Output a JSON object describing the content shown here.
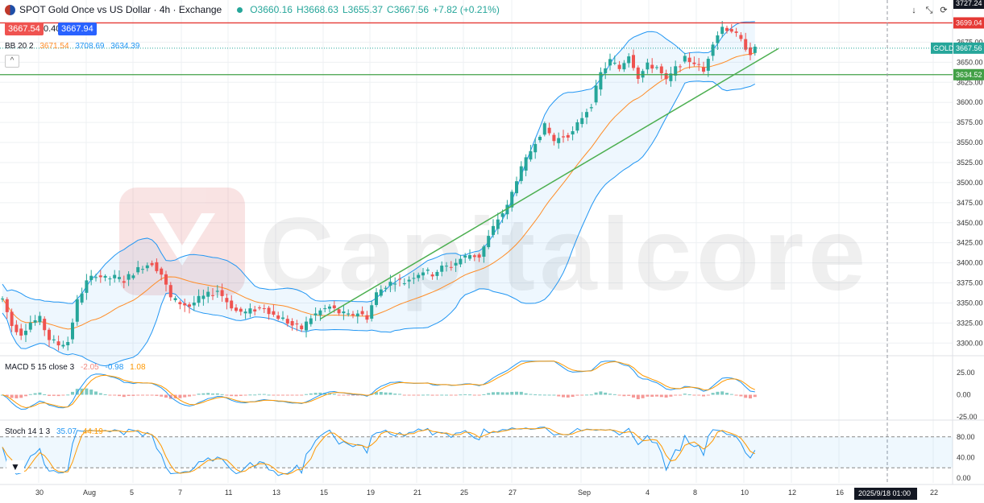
{
  "header": {
    "title": "SPOT Gold Once vs US Dollar · 4h · Exchange",
    "open": "O3660.16",
    "high": "H3668.63",
    "low": "L3655.37",
    "close": "C3667.56",
    "change": "+7.82 (+0.21%)",
    "sell_price": "3667.54",
    "spread": "0.40",
    "buy_price": "3667.94"
  },
  "indicators": {
    "bb": {
      "label": "BB 20 2",
      "basis": "3671.54",
      "upper": "3708.69",
      "lower": "3634.39"
    },
    "macd": {
      "label": "MACD 5 15 close 3",
      "hist": "-2.05",
      "macd": "-0.98",
      "signal": "1.08"
    },
    "stoch": {
      "label": "Stoch 14 1 3",
      "k": "35.07",
      "d": "44.19"
    }
  },
  "price_tags": {
    "top_partial": "3727.24",
    "resistance": "3699.04",
    "symbol": "GOLD",
    "current": "3667.56",
    "support": "3634.52"
  },
  "watermark": "Capitalcore",
  "toolbar": {
    "down_icon": "↓",
    "collapse_icon": "⤡",
    "refresh_icon": "⟳",
    "chevron": "^"
  },
  "colors": {
    "up": "#26a69a",
    "down": "#ef5350",
    "bb_band": "#2196f3",
    "bb_basis": "#ff8c26",
    "resistance_line": "#e53935",
    "support_line": "#43a047",
    "trendline": "#4caf50",
    "macd_line": "#2196f3",
    "signal_line": "#ff9800",
    "stoch_k": "#2196f3",
    "stoch_d": "#ff9800"
  },
  "chart_data": {
    "type": "candlestick",
    "timeframe": "4h",
    "y_ticks": [
      "3675.00",
      "3650.00",
      "3625.00",
      "3600.00",
      "3575.00",
      "3550.00",
      "3525.00",
      "3500.00",
      "3475.00",
      "3450.00",
      "3425.00",
      "3400.00",
      "3375.00",
      "3350.00",
      "3325.00",
      "3300.00"
    ],
    "ylim": [
      3280,
      3732
    ],
    "x_labels": [
      "30",
      "Aug",
      "5",
      "7",
      "11",
      "13",
      "15",
      "19",
      "21",
      "25",
      "27",
      "Sep",
      "4",
      "8",
      "10",
      "12",
      "16",
      "22"
    ],
    "cursor_label": "2025/9/18  01:00",
    "price_keypoints": [
      [
        0,
        3355
      ],
      [
        2,
        3322
      ],
      [
        4,
        3312
      ],
      [
        6,
        3326
      ],
      [
        8,
        3330
      ],
      [
        10,
        3305
      ],
      [
        12,
        3298
      ],
      [
        14,
        3302
      ],
      [
        16,
        3352
      ],
      [
        18,
        3376
      ],
      [
        20,
        3386
      ],
      [
        22,
        3380
      ],
      [
        24,
        3382
      ],
      [
        26,
        3378
      ],
      [
        28,
        3388
      ],
      [
        30,
        3396
      ],
      [
        32,
        3400
      ],
      [
        34,
        3386
      ],
      [
        36,
        3356
      ],
      [
        38,
        3350
      ],
      [
        40,
        3346
      ],
      [
        42,
        3355
      ],
      [
        44,
        3360
      ],
      [
        46,
        3366
      ],
      [
        48,
        3352
      ],
      [
        50,
        3340
      ],
      [
        52,
        3338
      ],
      [
        54,
        3342
      ],
      [
        56,
        3345
      ],
      [
        58,
        3335
      ],
      [
        60,
        3330
      ],
      [
        62,
        3322
      ],
      [
        64,
        3318
      ],
      [
        66,
        3332
      ],
      [
        68,
        3340
      ],
      [
        70,
        3345
      ],
      [
        72,
        3338
      ],
      [
        74,
        3334
      ],
      [
        76,
        3338
      ],
      [
        78,
        3332
      ],
      [
        80,
        3362
      ],
      [
        82,
        3372
      ],
      [
        84,
        3378
      ],
      [
        86,
        3376
      ],
      [
        88,
        3384
      ],
      [
        90,
        3390
      ],
      [
        92,
        3386
      ],
      [
        94,
        3394
      ],
      [
        96,
        3396
      ],
      [
        98,
        3405
      ],
      [
        100,
        3410
      ],
      [
        102,
        3408
      ],
      [
        104,
        3432
      ],
      [
        106,
        3455
      ],
      [
        108,
        3470
      ],
      [
        110,
        3505
      ],
      [
        112,
        3528
      ],
      [
        114,
        3552
      ],
      [
        116,
        3570
      ],
      [
        118,
        3552
      ],
      [
        120,
        3558
      ],
      [
        122,
        3562
      ],
      [
        124,
        3582
      ],
      [
        126,
        3598
      ],
      [
        128,
        3636
      ],
      [
        130,
        3652
      ],
      [
        132,
        3642
      ],
      [
        134,
        3660
      ],
      [
        136,
        3632
      ],
      [
        138,
        3646
      ],
      [
        140,
        3644
      ],
      [
        142,
        3626
      ],
      [
        144,
        3642
      ],
      [
        146,
        3654
      ],
      [
        148,
        3650
      ],
      [
        150,
        3638
      ],
      [
        152,
        3676
      ],
      [
        154,
        3694
      ],
      [
        156,
        3690
      ],
      [
        158,
        3676
      ],
      [
        160,
        3662
      ],
      [
        161,
        3666
      ]
    ],
    "bollinger": {
      "period": 20,
      "stddev": 2,
      "basis": 3671.54,
      "upper": 3708.69,
      "lower": 3634.39
    },
    "horizontal_levels": [
      {
        "name": "resistance",
        "value": 3699.04
      },
      {
        "name": "support",
        "value": 3634.52
      }
    ],
    "trendline": {
      "from": [
        68,
        3330
      ],
      "to": [
        166,
        3667
      ]
    },
    "macd": {
      "fast": 5,
      "slow": 15,
      "signal": 3,
      "y_ticks": [
        "25.00",
        "0.00",
        "-25.00"
      ],
      "ylim": [
        -32,
        42
      ]
    },
    "stoch": {
      "k": 14,
      "smooth": 1,
      "d": 3,
      "y_ticks": [
        "80.00",
        "40.00",
        "0.00"
      ],
      "ylim": [
        -10,
        110
      ],
      "bands": [
        20,
        80
      ]
    }
  }
}
